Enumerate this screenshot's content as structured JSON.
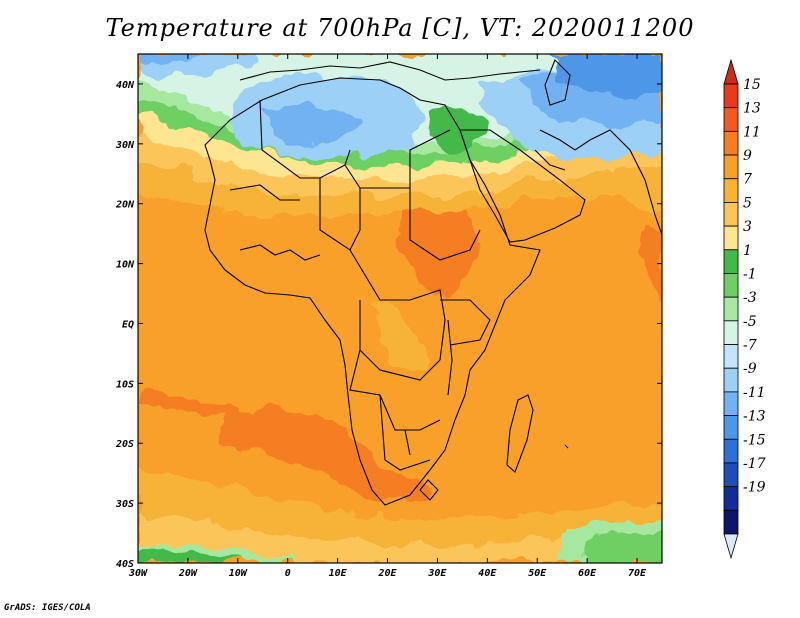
{
  "title": "Temperature at 700hPa [C], VT: 2020011200",
  "footer": "GrADS: IGES/COLA",
  "map": {
    "lon_range": [
      -30,
      75
    ],
    "lat_range": [
      -40,
      45
    ],
    "lon_ticks": [
      {
        "value": -30,
        "label": "30W"
      },
      {
        "value": -20,
        "label": "20W"
      },
      {
        "value": -10,
        "label": "10W"
      },
      {
        "value": 0,
        "label": "0"
      },
      {
        "value": 10,
        "label": "10E"
      },
      {
        "value": 20,
        "label": "20E"
      },
      {
        "value": 30,
        "label": "30E"
      },
      {
        "value": 40,
        "label": "40E"
      },
      {
        "value": 50,
        "label": "50E"
      },
      {
        "value": 60,
        "label": "60E"
      },
      {
        "value": 70,
        "label": "70E"
      }
    ],
    "lat_ticks": [
      {
        "value": 40,
        "label": "40N"
      },
      {
        "value": 30,
        "label": "30N"
      },
      {
        "value": 20,
        "label": "20N"
      },
      {
        "value": 10,
        "label": "10N"
      },
      {
        "value": 0,
        "label": "EQ"
      },
      {
        "value": -10,
        "label": "10S"
      },
      {
        "value": -20,
        "label": "20S"
      },
      {
        "value": -30,
        "label": "30S"
      },
      {
        "value": -40,
        "label": "40S"
      }
    ]
  },
  "colorbar": {
    "labels": [
      "15",
      "13",
      "11",
      "9",
      "7",
      "5",
      "3",
      "1",
      "-1",
      "-3",
      "-5",
      "-7",
      "-9",
      "-11",
      "-13",
      "-15",
      "-17",
      "-19"
    ],
    "colors": [
      "#e83a1c",
      "#f25a22",
      "#f57e22",
      "#f9a02a",
      "#f7b238",
      "#fbc55a",
      "#fde592",
      "#42b94a",
      "#6ed064",
      "#a6e8a0",
      "#d6f4e6",
      "#c4e4fa",
      "#9cd0f7",
      "#72b2f2",
      "#4e96e8",
      "#3070d6",
      "#1e4db8",
      "#122e94",
      "#0c1568"
    ],
    "top_arrow_color": "#cc2b14",
    "bottom_arrow_color": "#dde8f8"
  }
}
